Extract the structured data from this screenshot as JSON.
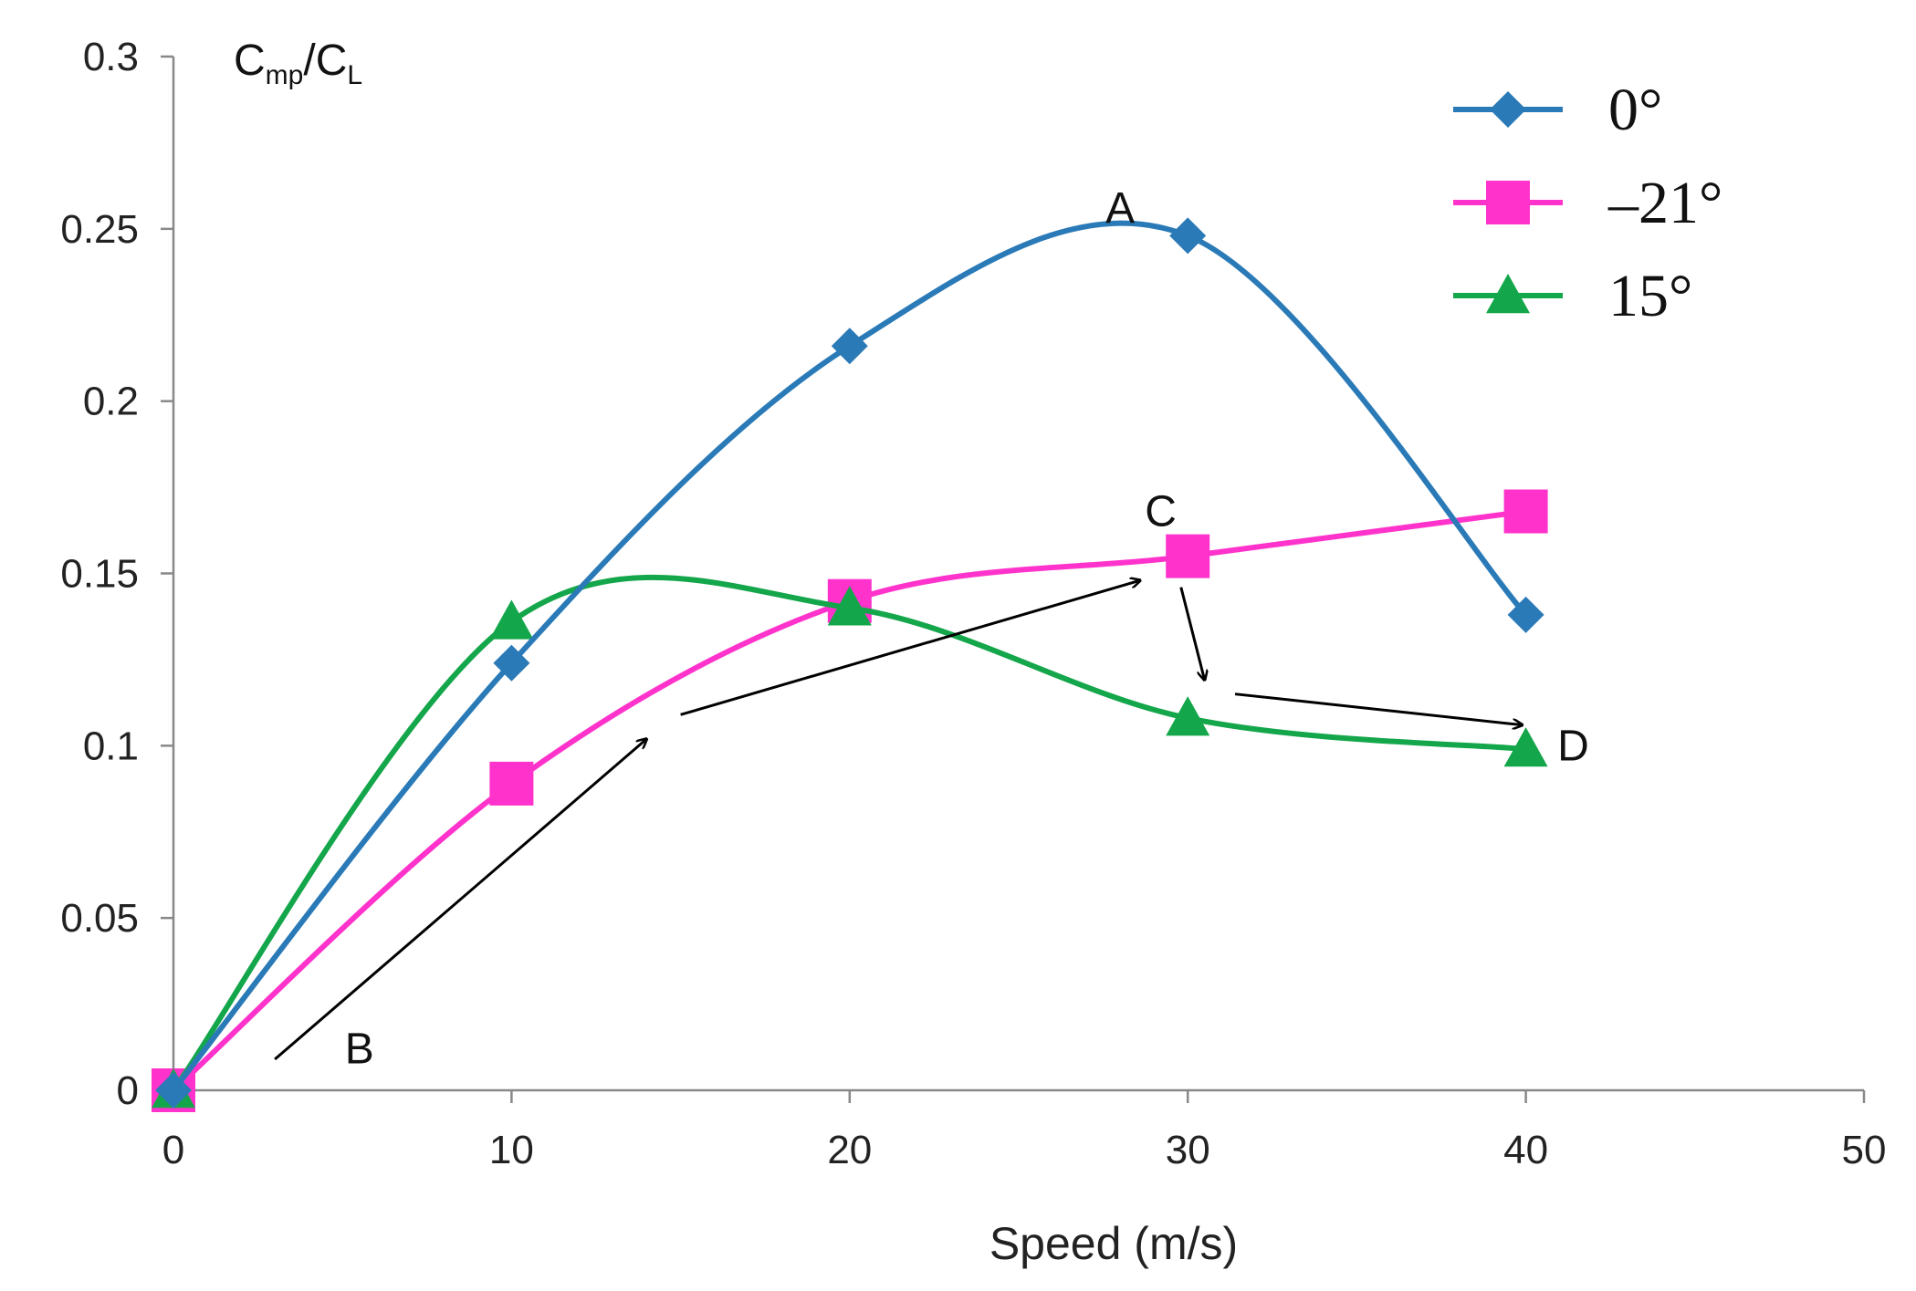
{
  "chart_data": {
    "type": "line",
    "smooth": true,
    "title": "",
    "xlabel": "Speed (m/s)",
    "ylabel": {
      "main": "C",
      "sub1": "mp",
      "slash": "/C",
      "sub2": "L"
    },
    "xlim": [
      0,
      50
    ],
    "ylim": [
      0,
      0.3
    ],
    "xticks": [
      0,
      10,
      20,
      30,
      40,
      50
    ],
    "yticks": [
      "0",
      "0.05",
      "0.1",
      "0.15",
      "0.2",
      "0.25",
      "0.3"
    ],
    "grid": false,
    "legend_position": "top-right",
    "series": [
      {
        "name": "0°",
        "color": "#2a7ab8",
        "marker": "diamond",
        "x": [
          0,
          10,
          20,
          30,
          40
        ],
        "y": [
          0,
          0.124,
          0.216,
          0.248,
          0.138
        ]
      },
      {
        "name": "–21°",
        "color": "#ff33cc",
        "marker": "square",
        "x": [
          0,
          10,
          20,
          30,
          40
        ],
        "y": [
          0,
          0.089,
          0.142,
          0.155,
          0.168
        ]
      },
      {
        "name": "15°",
        "color": "#14a64a",
        "marker": "triangle",
        "x": [
          0,
          10,
          20,
          30,
          40
        ],
        "y": [
          0,
          0.136,
          0.14,
          0.108,
          0.099
        ]
      }
    ],
    "annotations": [
      {
        "text": "A",
        "x": 28,
        "y": 0.256
      },
      {
        "text": "B",
        "x": 5.5,
        "y": 0.012
      },
      {
        "text": "C",
        "x": 29.2,
        "y": 0.168
      },
      {
        "text": "D",
        "x": 41.4,
        "y": 0.1
      }
    ],
    "arrows": [
      {
        "from": [
          3,
          0.009
        ],
        "to": [
          14,
          0.102
        ]
      },
      {
        "from": [
          15,
          0.109
        ],
        "to": [
          28.6,
          0.148
        ]
      },
      {
        "from": [
          29.8,
          0.146
        ],
        "to": [
          30.5,
          0.119
        ]
      },
      {
        "from": [
          31.4,
          0.115
        ],
        "to": [
          39.9,
          0.106
        ]
      }
    ]
  }
}
